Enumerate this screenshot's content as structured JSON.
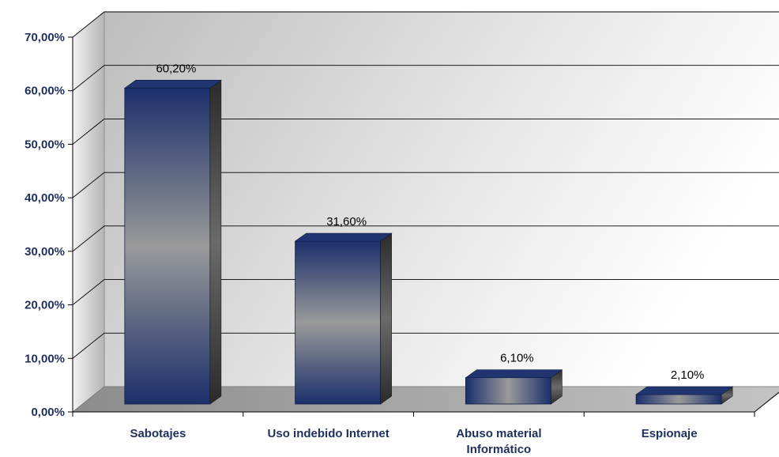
{
  "chart_data": {
    "type": "bar",
    "title": "",
    "xlabel": "",
    "ylabel": "",
    "categories": [
      [
        "Sabotajes"
      ],
      [
        "Uso indebido Internet"
      ],
      [
        "Abuso material",
        "Informático"
      ],
      [
        "Espionaje"
      ]
    ],
    "values": [
      60.2,
      31.6,
      6.1,
      2.1
    ],
    "data_labels": [
      "60,20%",
      "31,60%",
      "6,10%",
      "2,10%"
    ],
    "ylim": [
      0,
      70
    ],
    "yticks": [
      0,
      10,
      20,
      30,
      40,
      50,
      60,
      70
    ],
    "ytick_labels": [
      "0,00%",
      "10,00%",
      "20,00%",
      "30,00%",
      "40,00%",
      "50,00%",
      "60,00%",
      "70,00%"
    ],
    "grid": true,
    "legend": "none",
    "three_d": true,
    "colors": {
      "bar_dark": "#1b2f6b",
      "bar_mid": "#8f8f8f",
      "bar_side": "#3a3a3a",
      "wall_left": "#c9c9c9",
      "wall_right": "#ffffff",
      "floor": "#a8a8a8",
      "label_text": "#1f2f5e"
    }
  }
}
